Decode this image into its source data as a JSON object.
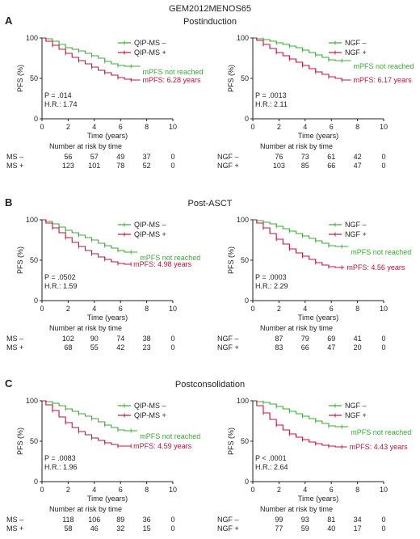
{
  "figure": {
    "title": "GEM2012MENOS65",
    "sections": [
      {
        "letter": "A",
        "title": "Postinduction"
      },
      {
        "letter": "B",
        "title": "Post-ASCT"
      },
      {
        "letter": "C",
        "title": "Postconsolidation"
      }
    ],
    "colors": {
      "negative": "#3aaa35",
      "positive": "#c0133a",
      "axis": "#222222"
    }
  },
  "chart_data": [
    {
      "type": "line",
      "section": "A",
      "panel": "left",
      "xlabel": "Time (years)",
      "ylabel": "PFS (%)",
      "xlim": [
        0,
        10
      ],
      "ylim": [
        0,
        100
      ],
      "xticks": [
        0,
        2,
        4,
        6,
        8,
        10
      ],
      "yticks": [
        0,
        50,
        100
      ],
      "series": [
        {
          "name": "QIP-MS –",
          "color": "#3aaa35",
          "x": [
            0,
            0.3,
            0.8,
            1.3,
            1.8,
            2.3,
            2.8,
            3.3,
            3.8,
            4.3,
            4.8,
            5.3,
            5.8,
            6.3,
            6.8,
            7.5
          ],
          "y": [
            100,
            99,
            96,
            92,
            88,
            86,
            84,
            81,
            78,
            75,
            71,
            68,
            66,
            65,
            65,
            65
          ]
        },
        {
          "name": "QIP-MS +",
          "color": "#c0133a",
          "x": [
            0,
            0.3,
            0.8,
            1.3,
            1.8,
            2.3,
            2.8,
            3.3,
            3.8,
            4.3,
            4.8,
            5.3,
            5.8,
            6.3,
            6.8,
            7.5
          ],
          "y": [
            100,
            96,
            91,
            86,
            81,
            76,
            72,
            68,
            64,
            60,
            57,
            54,
            51,
            49,
            48,
            48
          ]
        }
      ],
      "annotations": {
        "neg_label": "mPFS not reached",
        "pos_label": "mPFS: 6.28 years",
        "p_value": "P = .014",
        "hr": "H.R.: 1.74"
      },
      "risk_table": {
        "title": "Number at risk by time",
        "rows": [
          {
            "label": "MS –",
            "values": [
              "56",
              "57",
              "49",
              "37",
              "0"
            ]
          },
          {
            "label": "MS +",
            "values": [
              "123",
              "101",
              "78",
              "52",
              "0"
            ]
          }
        ]
      }
    },
    {
      "type": "line",
      "section": "A",
      "panel": "right",
      "xlabel": "Time (years)",
      "ylabel": "PFS (%)",
      "xlim": [
        0,
        10
      ],
      "ylim": [
        0,
        100
      ],
      "xticks": [
        0,
        2,
        4,
        6,
        8,
        10
      ],
      "yticks": [
        0,
        50,
        100
      ],
      "series": [
        {
          "name": "NGF –",
          "color": "#3aaa35",
          "x": [
            0,
            0.3,
            0.8,
            1.3,
            1.8,
            2.3,
            2.8,
            3.3,
            3.8,
            4.3,
            4.8,
            5.3,
            5.8,
            6.3,
            6.8,
            7.5
          ],
          "y": [
            100,
            99,
            98,
            96,
            94,
            92,
            90,
            88,
            85,
            82,
            79,
            76,
            73,
            72,
            72,
            72
          ]
        },
        {
          "name": "NGF +",
          "color": "#c0133a",
          "x": [
            0,
            0.3,
            0.8,
            1.3,
            1.8,
            2.3,
            2.8,
            3.3,
            3.8,
            4.3,
            4.8,
            5.3,
            5.8,
            6.3,
            6.8,
            7.5
          ],
          "y": [
            100,
            97,
            92,
            87,
            82,
            78,
            74,
            70,
            66,
            62,
            58,
            55,
            52,
            50,
            48,
            48
          ]
        }
      ],
      "annotations": {
        "neg_label": "mPFS not reached",
        "pos_label": "mPFS: 6.17 years",
        "p_value": "P = .0013",
        "hr": "H.R.: 2.11"
      },
      "risk_table": {
        "title": "Number at risk by time",
        "rows": [
          {
            "label": "NGF –",
            "values": [
              "76",
              "73",
              "61",
              "42",
              "0"
            ]
          },
          {
            "label": "NGF +",
            "values": [
              "103",
              "85",
              "66",
              "47",
              "0"
            ]
          }
        ]
      }
    },
    {
      "type": "line",
      "section": "B",
      "panel": "left",
      "xlabel": "Time (years)",
      "ylabel": "PFS (%)",
      "xlim": [
        0,
        10
      ],
      "ylim": [
        0,
        100
      ],
      "xticks": [
        0,
        2,
        4,
        6,
        8,
        10
      ],
      "yticks": [
        0,
        50,
        100
      ],
      "series": [
        {
          "name": "QIP-MS –",
          "color": "#3aaa35",
          "x": [
            0,
            0.3,
            0.8,
            1.3,
            1.8,
            2.3,
            2.8,
            3.3,
            3.8,
            4.3,
            4.8,
            5.3,
            5.8,
            6.3,
            6.8,
            7.3
          ],
          "y": [
            100,
            98,
            95,
            91,
            87,
            84,
            81,
            78,
            75,
            71,
            68,
            65,
            62,
            60,
            60,
            60
          ]
        },
        {
          "name": "QIP-MS +",
          "color": "#c0133a",
          "x": [
            0,
            0.3,
            0.8,
            1.3,
            1.8,
            2.3,
            2.8,
            3.3,
            3.8,
            4.3,
            4.8,
            5.3,
            5.8,
            6.3,
            6.8
          ],
          "y": [
            100,
            96,
            90,
            84,
            78,
            72,
            67,
            62,
            58,
            54,
            51,
            48,
            46,
            45,
            45
          ]
        }
      ],
      "annotations": {
        "neg_label": "mPFS not reached",
        "pos_label": "mPFS: 4.98 years",
        "p_value": "P = .0502",
        "hr": "H.R.: 1.59"
      },
      "risk_table": {
        "title": "Number at risk by time",
        "rows": [
          {
            "label": "MS –",
            "values": [
              "102",
              "90",
              "74",
              "38",
              "0"
            ]
          },
          {
            "label": "MS +",
            "values": [
              "68",
              "55",
              "42",
              "23",
              "0"
            ]
          }
        ]
      }
    },
    {
      "type": "line",
      "section": "B",
      "panel": "right",
      "xlabel": "Time (years)",
      "ylabel": "PFS (%)",
      "xlim": [
        0,
        10
      ],
      "ylim": [
        0,
        100
      ],
      "xticks": [
        0,
        2,
        4,
        6,
        8,
        10
      ],
      "yticks": [
        0,
        50,
        100
      ],
      "series": [
        {
          "name": "NGF –",
          "color": "#3aaa35",
          "x": [
            0,
            0.3,
            0.8,
            1.3,
            1.8,
            2.3,
            2.8,
            3.3,
            3.8,
            4.3,
            4.8,
            5.3,
            5.8,
            6.3,
            6.8,
            7.3
          ],
          "y": [
            100,
            99,
            97,
            95,
            92,
            89,
            86,
            83,
            80,
            77,
            74,
            71,
            68,
            67,
            67,
            67
          ]
        },
        {
          "name": "NGF +",
          "color": "#c0133a",
          "x": [
            0,
            0.3,
            0.8,
            1.3,
            1.8,
            2.3,
            2.8,
            3.3,
            3.8,
            4.3,
            4.8,
            5.3,
            5.8,
            6.3,
            6.8,
            7.0
          ],
          "y": [
            100,
            96,
            90,
            83,
            76,
            70,
            64,
            59,
            55,
            51,
            47,
            44,
            42,
            41,
            41,
            41
          ]
        }
      ],
      "annotations": {
        "neg_label": "mPFS not reached",
        "pos_label": "mPFS: 4.56 years",
        "p_value": "P = .0003",
        "hr": "H.R.: 2.29"
      },
      "risk_table": {
        "title": "Number at risk by time",
        "rows": [
          {
            "label": "NGF –",
            "values": [
              "87",
              "79",
              "69",
              "41",
              "0"
            ]
          },
          {
            "label": "NGF +",
            "values": [
              "83",
              "66",
              "47",
              "20",
              "0"
            ]
          }
        ]
      }
    },
    {
      "type": "line",
      "section": "C",
      "panel": "left",
      "xlabel": "Time (years)",
      "ylabel": "PFS (%)",
      "xlim": [
        0,
        10
      ],
      "ylim": [
        0,
        100
      ],
      "xticks": [
        0,
        2,
        4,
        6,
        8,
        10
      ],
      "yticks": [
        0,
        50,
        100
      ],
      "series": [
        {
          "name": "QIP-MS –",
          "color": "#3aaa35",
          "x": [
            0,
            0.3,
            0.8,
            1.3,
            1.8,
            2.3,
            2.8,
            3.3,
            3.8,
            4.3,
            4.8,
            5.3,
            5.8,
            6.3,
            6.8,
            7.3
          ],
          "y": [
            100,
            99,
            97,
            94,
            90,
            87,
            84,
            81,
            78,
            74,
            70,
            67,
            64,
            63,
            63,
            63
          ]
        },
        {
          "name": "QIP-MS +",
          "color": "#c0133a",
          "x": [
            0,
            0.3,
            0.8,
            1.3,
            1.8,
            2.3,
            2.8,
            3.3,
            3.8,
            4.3,
            4.8,
            5.3,
            5.8,
            6.3,
            6.8
          ],
          "y": [
            100,
            95,
            88,
            80,
            73,
            67,
            62,
            58,
            54,
            51,
            48,
            46,
            44,
            44,
            44
          ]
        }
      ],
      "annotations": {
        "neg_label": "mPFS not reached",
        "pos_label": "mPFS: 4.59 years",
        "p_value": "P = .0083",
        "hr": "H.R.: 1.96"
      },
      "risk_table": {
        "title": "Number at risk by time",
        "rows": [
          {
            "label": "MS –",
            "values": [
              "118",
              "106",
              "89",
              "36",
              "0"
            ]
          },
          {
            "label": "MS +",
            "values": [
              "58",
              "46",
              "32",
              "15",
              "0"
            ]
          }
        ]
      }
    },
    {
      "type": "line",
      "section": "C",
      "panel": "right",
      "xlabel": "Time (years)",
      "ylabel": "PFS (%)",
      "xlim": [
        0,
        10
      ],
      "ylim": [
        0,
        100
      ],
      "xticks": [
        0,
        2,
        4,
        6,
        8,
        10
      ],
      "yticks": [
        0,
        50,
        100
      ],
      "series": [
        {
          "name": "NGF –",
          "color": "#3aaa35",
          "x": [
            0,
            0.3,
            0.8,
            1.3,
            1.8,
            2.3,
            2.8,
            3.3,
            3.8,
            4.3,
            4.8,
            5.3,
            5.8,
            6.3,
            6.8,
            7.3
          ],
          "y": [
            100,
            99,
            98,
            96,
            93,
            90,
            87,
            84,
            81,
            78,
            75,
            72,
            69,
            68,
            68,
            68
          ]
        },
        {
          "name": "NGF +",
          "color": "#c0133a",
          "x": [
            0,
            0.3,
            0.8,
            1.3,
            1.8,
            2.3,
            2.8,
            3.3,
            3.8,
            4.3,
            4.8,
            5.3,
            5.8,
            6.3,
            6.8,
            7.2
          ],
          "y": [
            100,
            94,
            85,
            77,
            70,
            64,
            59,
            55,
            52,
            49,
            47,
            45,
            44,
            43,
            43,
            43
          ]
        }
      ],
      "annotations": {
        "neg_label": "mPFS not reached",
        "pos_label": "mPFS: 4.43 years",
        "p_value": "P < .0001",
        "hr": "H.R.: 2.64"
      },
      "risk_table": {
        "title": "Number at risk by time",
        "rows": [
          {
            "label": "NGF –",
            "values": [
              "99",
              "93",
              "81",
              "34",
              "0"
            ]
          },
          {
            "label": "NGF +",
            "values": [
              "77",
              "59",
              "40",
              "17",
              "0"
            ]
          }
        ]
      }
    }
  ]
}
